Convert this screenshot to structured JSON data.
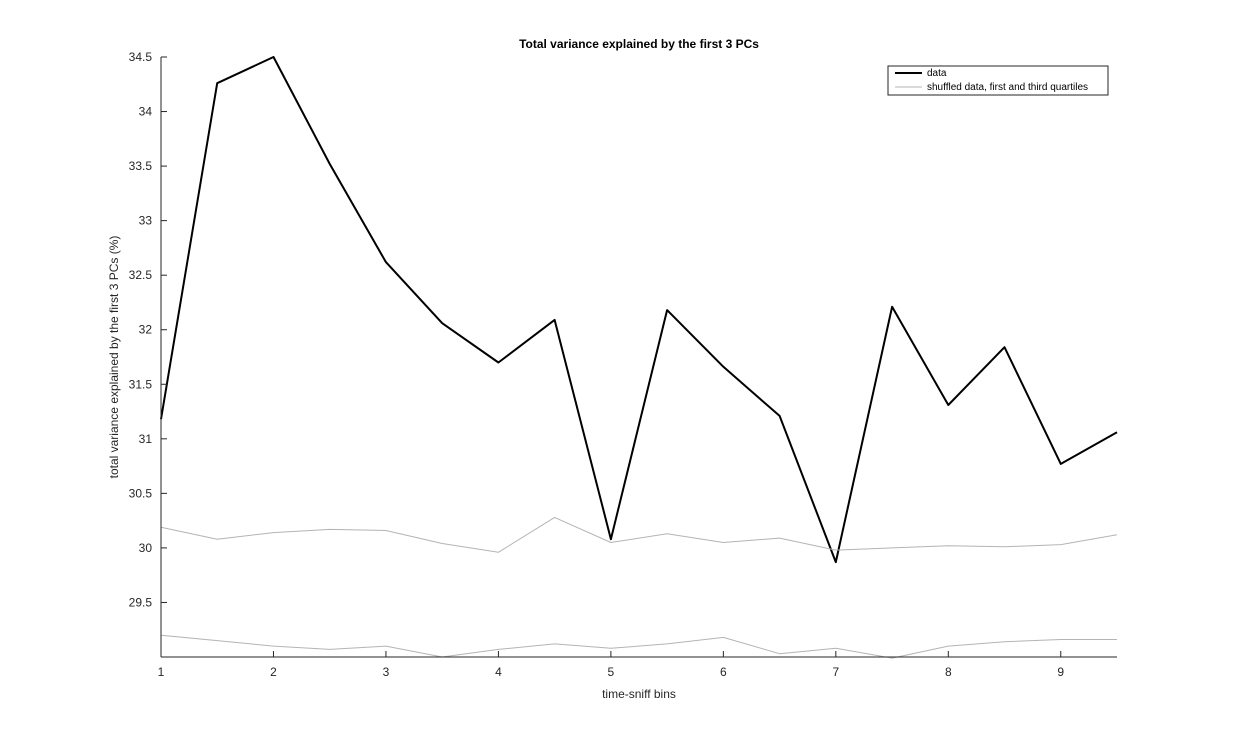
{
  "chart_data": {
    "type": "line",
    "title": "Total variance explained by the first 3 PCs",
    "xlabel": "time-sniff bins",
    "ylabel": "total variance explained by the first 3 PCs (%)",
    "xlim": [
      1,
      9.5
    ],
    "ylim": [
      29.0,
      34.5
    ],
    "xticks": [
      "1",
      "2",
      "3",
      "4",
      "5",
      "6",
      "7",
      "8",
      "9"
    ],
    "yticks": [
      "29.5",
      "30",
      "30.5",
      "31",
      "31.5",
      "32",
      "32.5",
      "33",
      "33.5",
      "34",
      "34.5"
    ],
    "grid": false,
    "legend_position": "top-right",
    "x": [
      1,
      1.5,
      2,
      2.5,
      3,
      3.5,
      4,
      4.5,
      5,
      5.5,
      6,
      6.5,
      7,
      7.5,
      8,
      8.5,
      9,
      9.5
    ],
    "series": [
      {
        "name": "data",
        "color": "#000000",
        "values": [
          31.18,
          34.26,
          34.5,
          33.52,
          32.62,
          32.06,
          31.7,
          32.09,
          30.08,
          32.18,
          31.66,
          31.21,
          29.87,
          32.21,
          31.31,
          31.84,
          30.77,
          31.06
        ]
      },
      {
        "name": "shuffled data, first and third quartiles",
        "color": "#b4b4b4",
        "values": [
          30.19,
          30.08,
          30.14,
          30.17,
          30.16,
          30.04,
          29.96,
          30.28,
          30.05,
          30.13,
          30.05,
          30.09,
          29.98,
          30.0,
          30.02,
          30.01,
          30.03,
          30.12
        ]
      },
      {
        "name": "",
        "color": "#b4b4b4",
        "values": [
          29.2,
          29.15,
          29.1,
          29.07,
          29.1,
          29.0,
          29.07,
          29.12,
          29.08,
          29.12,
          29.18,
          29.03,
          29.08,
          28.99,
          29.1,
          29.14,
          29.16,
          29.16
        ]
      }
    ]
  }
}
